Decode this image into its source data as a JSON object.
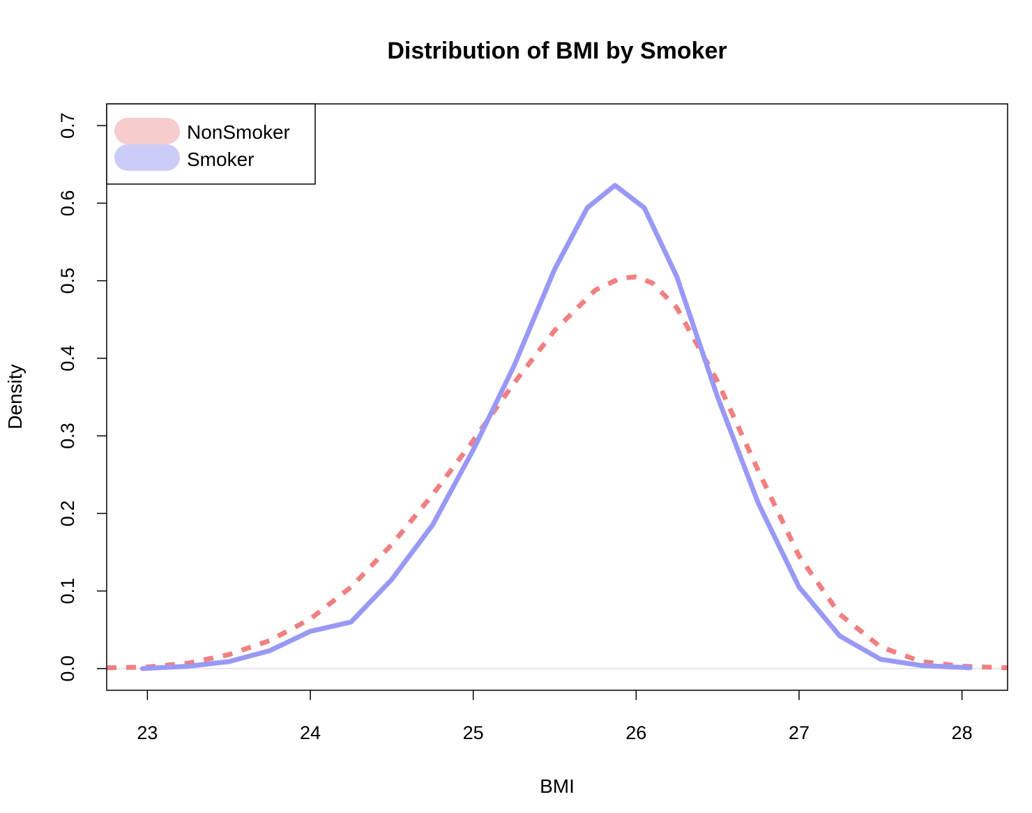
{
  "chart_data": {
    "type": "line",
    "title": "Distribution of BMI by Smoker",
    "xlabel": "BMI",
    "ylabel": "Density",
    "xlim": [
      22.75,
      28.28
    ],
    "ylim": [
      -0.028,
      0.728
    ],
    "x_ticks": [
      "23",
      "24",
      "25",
      "26",
      "27",
      "28"
    ],
    "y_ticks": [
      "0.0",
      "0.1",
      "0.2",
      "0.3",
      "0.4",
      "0.5",
      "0.6",
      "0.7"
    ],
    "legend_position": "top-left",
    "series": [
      {
        "name": "NonSmoker",
        "color": "#f08080",
        "legend_color": "#f7cccc",
        "style": "dashed",
        "x": [
          22.75,
          23.0,
          23.25,
          23.5,
          23.75,
          24.0,
          24.25,
          24.5,
          24.75,
          25.0,
          25.25,
          25.5,
          25.75,
          25.9,
          26.0,
          26.1,
          26.25,
          26.5,
          26.75,
          27.0,
          27.25,
          27.5,
          27.75,
          28.0,
          28.28
        ],
        "y": [
          0.001,
          0.002,
          0.007,
          0.018,
          0.036,
          0.064,
          0.105,
          0.16,
          0.224,
          0.294,
          0.368,
          0.436,
          0.488,
          0.503,
          0.505,
          0.497,
          0.465,
          0.37,
          0.255,
          0.145,
          0.07,
          0.028,
          0.009,
          0.003,
          0.001
        ]
      },
      {
        "name": "Smoker",
        "color": "#9999f5",
        "legend_color": "#ccccf8",
        "style": "solid",
        "x": [
          22.97,
          23.25,
          23.5,
          23.75,
          24.0,
          24.25,
          24.5,
          24.75,
          25.0,
          25.25,
          25.5,
          25.7,
          25.87,
          26.05,
          26.25,
          26.5,
          26.75,
          27.0,
          27.25,
          27.5,
          27.75,
          28.05
        ],
        "y": [
          0.0,
          0.003,
          0.009,
          0.023,
          0.048,
          0.06,
          0.115,
          0.185,
          0.282,
          0.39,
          0.515,
          0.594,
          0.623,
          0.594,
          0.505,
          0.35,
          0.213,
          0.105,
          0.042,
          0.012,
          0.004,
          0.001
        ]
      }
    ]
  }
}
